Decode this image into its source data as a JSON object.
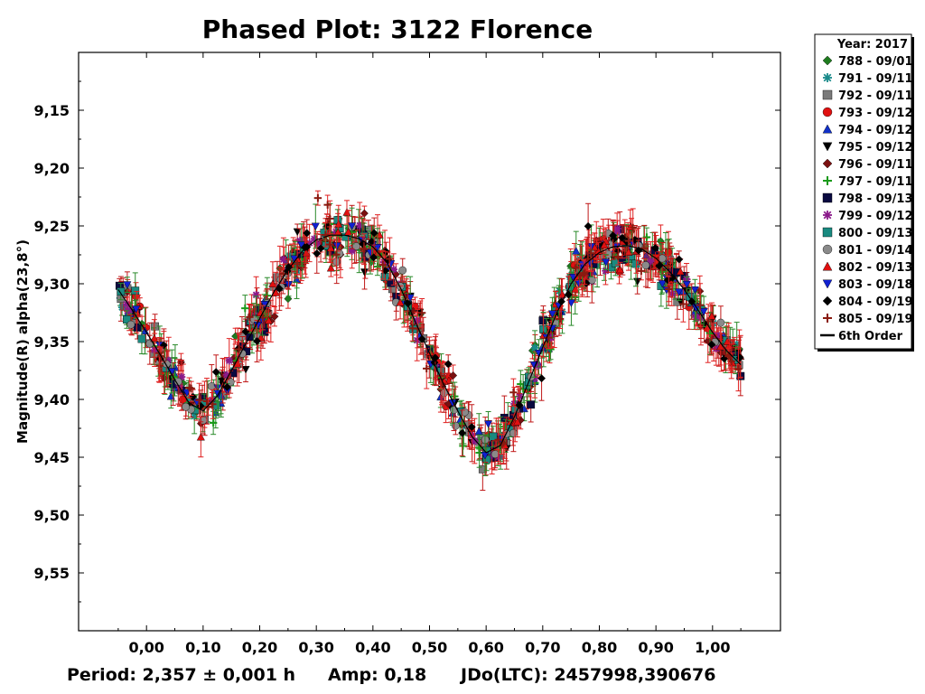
{
  "footer": {
    "period": "Period: 2,357 ± 0,001 h",
    "amp": "Amp: 0,18",
    "jdo": "JDo(LTC): 2457998,390676"
  },
  "chart_data": {
    "type": "scatter",
    "title": "Phased Plot: 3122 Florence",
    "ylabel": "Magnitude(R) alpha(23,8°)",
    "xlabel": "",
    "xlim": [
      -0.12,
      1.12
    ],
    "ylim": [
      9.6,
      9.1
    ],
    "y_inverted": true,
    "grid": false,
    "legend_position": "right-top-outside",
    "xticks": [
      0.0,
      0.1,
      0.2,
      0.3,
      0.4,
      0.5,
      0.6,
      0.7,
      0.8,
      0.9,
      1.0
    ],
    "xtick_labels": [
      "0,00",
      "0,10",
      "0,20",
      "0,30",
      "0,40",
      "0,50",
      "0,60",
      "0,70",
      "0,80",
      "0,90",
      "1,00"
    ],
    "yticks": [
      9.15,
      9.2,
      9.25,
      9.3,
      9.35,
      9.4,
      9.45,
      9.5,
      9.55
    ],
    "ytick_labels": [
      "9,15",
      "9,20",
      "9,25",
      "9,30",
      "9,35",
      "9,40",
      "9,45",
      "9,50",
      "9,55"
    ],
    "legend_title": "Year: 2017",
    "phase_range": [
      -0.05,
      1.05
    ],
    "fit": {
      "name": "6th Order",
      "color": "#000000",
      "curve_x": [
        -0.05,
        -0.025,
        0.0,
        0.025,
        0.05,
        0.075,
        0.1,
        0.125,
        0.15,
        0.175,
        0.2,
        0.225,
        0.25,
        0.275,
        0.3,
        0.325,
        0.35,
        0.375,
        0.4,
        0.425,
        0.45,
        0.475,
        0.5,
        0.525,
        0.55,
        0.575,
        0.6,
        0.625,
        0.65,
        0.675,
        0.7,
        0.725,
        0.75,
        0.775,
        0.8,
        0.825,
        0.85,
        0.875,
        0.9,
        0.925,
        0.95,
        0.975,
        1.0,
        1.025,
        1.05
      ],
      "curve_y": [
        9.305,
        9.323,
        9.342,
        9.362,
        9.383,
        9.403,
        9.41,
        9.397,
        9.375,
        9.352,
        9.33,
        9.307,
        9.288,
        9.272,
        9.262,
        9.258,
        9.258,
        9.261,
        9.268,
        9.282,
        9.305,
        9.333,
        9.36,
        9.387,
        9.41,
        9.432,
        9.446,
        9.44,
        9.415,
        9.385,
        9.355,
        9.325,
        9.3,
        9.283,
        9.273,
        9.268,
        9.267,
        9.27,
        9.278,
        9.29,
        9.305,
        9.323,
        9.342,
        9.358,
        9.37
      ]
    },
    "series": [
      {
        "name": "788 - 09/01",
        "marker": "diamond",
        "color": "#1e7b1e"
      },
      {
        "name": "791 - 09/11",
        "marker": "asterisk",
        "color": "#1a8a8a"
      },
      {
        "name": "792 - 09/11",
        "marker": "square",
        "color": "#7a7a7a"
      },
      {
        "name": "793 - 09/12",
        "marker": "circle",
        "color": "#e01010"
      },
      {
        "name": "794 - 09/12",
        "marker": "triangle-up",
        "color": "#1030c8"
      },
      {
        "name": "795 - 09/12",
        "marker": "triangle-down",
        "color": "#000000"
      },
      {
        "name": "796 - 09/11",
        "marker": "diamond",
        "color": "#7a1010"
      },
      {
        "name": "797 - 09/11",
        "marker": "plus",
        "color": "#1a9a1a"
      },
      {
        "name": "798 - 09/13",
        "marker": "square",
        "color": "#0a0a40"
      },
      {
        "name": "799 - 09/12",
        "marker": "asterisk",
        "color": "#8a1a8a"
      },
      {
        "name": "800 - 09/13",
        "marker": "square",
        "color": "#1a8a80"
      },
      {
        "name": "801 - 09/14",
        "marker": "circle",
        "color": "#8a8a8a"
      },
      {
        "name": "802 - 09/13",
        "marker": "triangle-up",
        "color": "#e01010"
      },
      {
        "name": "803 - 09/18",
        "marker": "triangle-down",
        "color": "#1020d0"
      },
      {
        "name": "804 - 09/19",
        "marker": "diamond",
        "color": "#000000"
      },
      {
        "name": "805 - 09/19",
        "marker": "plus",
        "color": "#8a1a10"
      }
    ]
  }
}
